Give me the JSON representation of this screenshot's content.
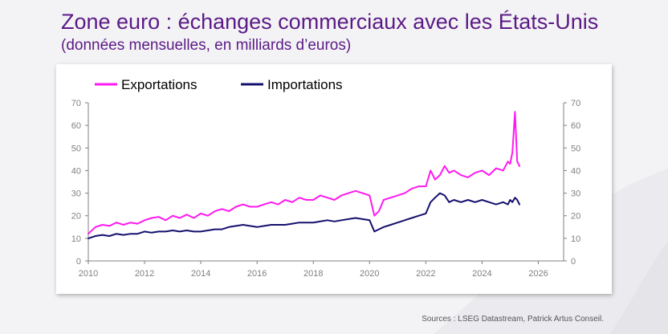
{
  "header": {
    "title": "Zone euro : échanges commerciaux avec les États-Unis",
    "subtitle": "(données mensuelles, en milliards d’euros)"
  },
  "source": "Sources : LSEG Datastream, Patrick Artus Conseil.",
  "colors": {
    "title": "#5b1a86",
    "exports": "#ff19f0",
    "imports": "#14106e",
    "axis": "#808080"
  },
  "chart_data": {
    "type": "line",
    "title": "Zone euro : échanges commerciaux avec les États-Unis",
    "subtitle": "(données mensuelles, en milliards d’euros)",
    "x_range": [
      2010,
      2026.9
    ],
    "ylim": [
      0,
      70
    ],
    "x_ticks": [
      2010,
      2012,
      2014,
      2016,
      2018,
      2020,
      2022,
      2024,
      2026
    ],
    "y_ticks": [
      0,
      10,
      20,
      30,
      40,
      50,
      60,
      70
    ],
    "y_axis_left": true,
    "y_axis_right": true,
    "grid": false,
    "legend_position": "top-left",
    "series": [
      {
        "name": "Exportations",
        "color": "#ff19f0",
        "x": [
          2010.0,
          2010.25,
          2010.5,
          2010.75,
          2011.0,
          2011.25,
          2011.5,
          2011.75,
          2012.0,
          2012.25,
          2012.5,
          2012.75,
          2013.0,
          2013.25,
          2013.5,
          2013.75,
          2014.0,
          2014.25,
          2014.5,
          2014.75,
          2015.0,
          2015.25,
          2015.5,
          2015.75,
          2016.0,
          2016.25,
          2016.5,
          2016.75,
          2017.0,
          2017.25,
          2017.5,
          2017.75,
          2018.0,
          2018.25,
          2018.5,
          2018.75,
          2019.0,
          2019.25,
          2019.5,
          2019.75,
          2020.0,
          2020.17,
          2020.33,
          2020.5,
          2020.75,
          2021.0,
          2021.25,
          2021.5,
          2021.75,
          2022.0,
          2022.17,
          2022.33,
          2022.5,
          2022.67,
          2022.83,
          2023.0,
          2023.25,
          2023.5,
          2023.75,
          2024.0,
          2024.25,
          2024.5,
          2024.75,
          2024.92,
          2025.0,
          2025.08,
          2025.17,
          2025.25,
          2025.33
        ],
        "values": [
          12,
          15,
          16,
          15.5,
          17,
          16,
          17,
          16.5,
          18,
          19,
          19.5,
          18,
          20,
          19,
          20.5,
          19,
          21,
          20,
          22,
          23,
          22,
          24,
          25,
          24,
          24,
          25,
          26,
          25,
          27,
          26,
          28,
          27,
          27,
          29,
          28,
          27,
          29,
          30,
          31,
          30,
          29,
          20,
          22,
          27,
          28,
          29,
          30,
          32,
          33,
          33,
          40,
          36,
          38,
          42,
          39,
          40,
          38,
          37,
          39,
          40,
          38,
          41,
          40,
          44,
          43,
          48,
          66,
          44,
          42
        ]
      },
      {
        "name": "Importations",
        "color": "#14106e",
        "x": [
          2010.0,
          2010.25,
          2010.5,
          2010.75,
          2011.0,
          2011.25,
          2011.5,
          2011.75,
          2012.0,
          2012.25,
          2012.5,
          2012.75,
          2013.0,
          2013.25,
          2013.5,
          2013.75,
          2014.0,
          2014.25,
          2014.5,
          2014.75,
          2015.0,
          2015.25,
          2015.5,
          2015.75,
          2016.0,
          2016.25,
          2016.5,
          2016.75,
          2017.0,
          2017.25,
          2017.5,
          2017.75,
          2018.0,
          2018.25,
          2018.5,
          2018.75,
          2019.0,
          2019.25,
          2019.5,
          2019.75,
          2020.0,
          2020.17,
          2020.33,
          2020.5,
          2020.75,
          2021.0,
          2021.25,
          2021.5,
          2021.75,
          2022.0,
          2022.17,
          2022.33,
          2022.5,
          2022.67,
          2022.83,
          2023.0,
          2023.25,
          2023.5,
          2023.75,
          2024.0,
          2024.25,
          2024.5,
          2024.75,
          2024.92,
          2025.0,
          2025.08,
          2025.17,
          2025.25,
          2025.33
        ],
        "values": [
          10,
          11,
          11.5,
          11,
          12,
          11.5,
          12,
          12,
          13,
          12.5,
          13,
          13,
          13.5,
          13,
          13.5,
          13,
          13,
          13.5,
          14,
          14,
          15,
          15.5,
          16,
          15.5,
          15,
          15.5,
          16,
          16,
          16,
          16.5,
          17,
          17,
          17,
          17.5,
          18,
          17.5,
          18,
          18.5,
          19,
          18.5,
          18,
          13,
          14,
          15,
          16,
          17,
          18,
          19,
          20,
          21,
          26,
          28,
          30,
          29,
          26,
          27,
          26,
          27,
          26,
          27,
          26,
          25,
          26,
          25,
          27,
          26,
          28,
          27,
          25
        ]
      }
    ]
  }
}
